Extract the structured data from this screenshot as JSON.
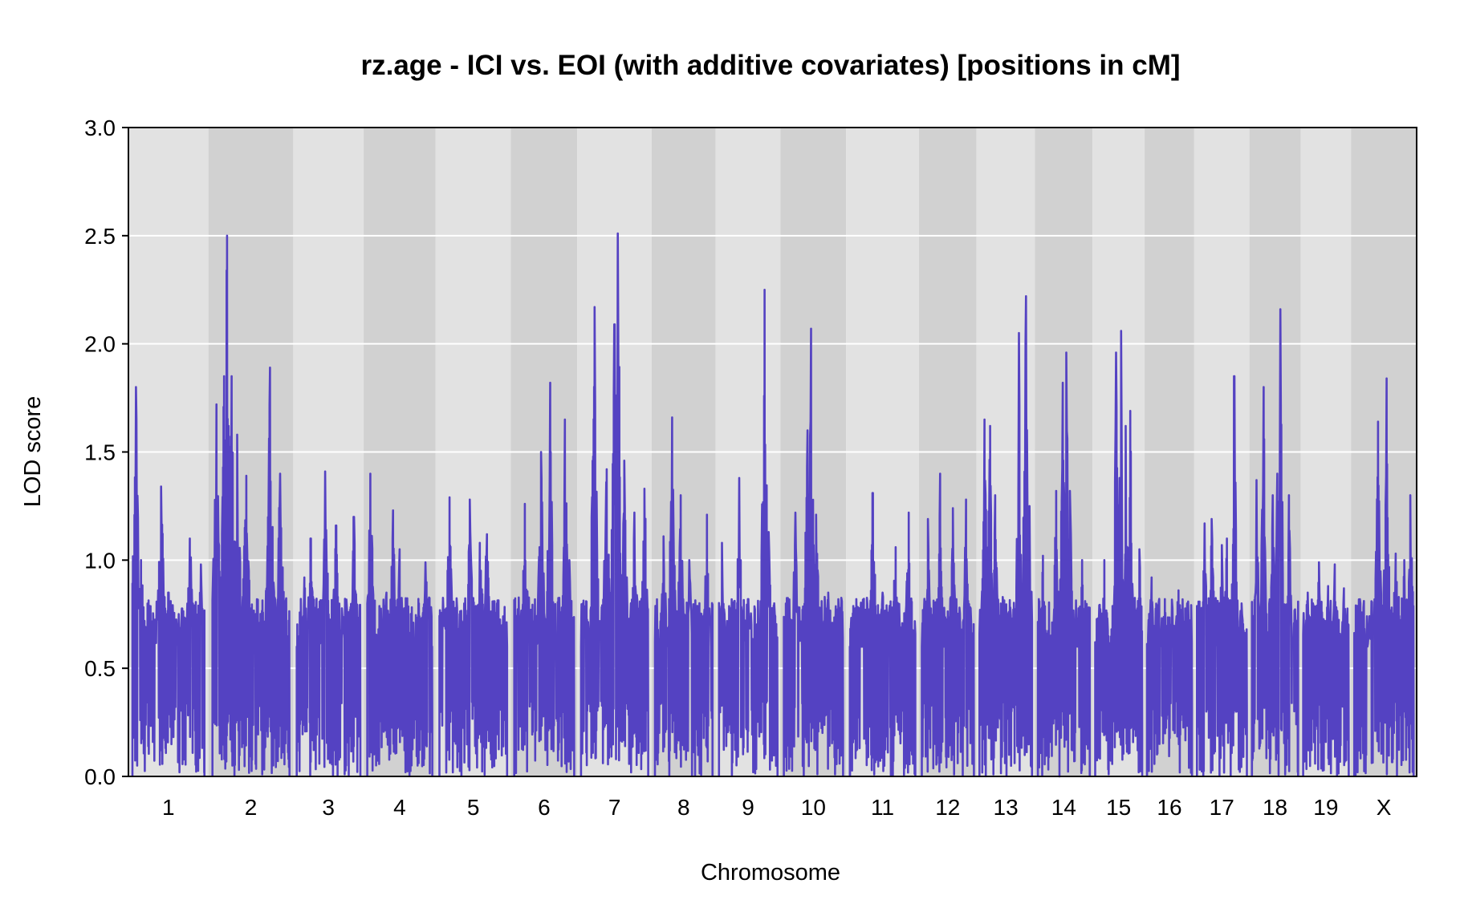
{
  "chart_data": {
    "type": "line",
    "title": "rz.age - ICI vs. EOI (with additive covariates) [positions in cM]",
    "xlabel": "Chromosome",
    "ylabel": "LOD score",
    "ylim": [
      0.0,
      3.0
    ],
    "yticks": [
      "0.0",
      "0.5",
      "1.0",
      "1.5",
      "2.0",
      "2.5",
      "3.0"
    ],
    "grid": true,
    "legend": "none",
    "colors": {
      "line": "#5442c2",
      "band_light": "#e2e2e2",
      "band_dark": "#d1d1d1",
      "grid": "#ffffff",
      "frame": "#000000"
    },
    "chromosomes": [
      {
        "name": "1",
        "peaks": [
          [
            0.05,
            1.8
          ],
          [
            0.12,
            1.0
          ],
          [
            0.4,
            1.34
          ],
          [
            0.5,
            0.85
          ],
          [
            0.8,
            1.1
          ],
          [
            0.95,
            0.98
          ]
        ]
      },
      {
        "name": "2",
        "peaks": [
          [
            0.05,
            1.72
          ],
          [
            0.15,
            1.85
          ],
          [
            0.19,
            2.5
          ],
          [
            0.25,
            1.85
          ],
          [
            0.32,
            1.58
          ],
          [
            0.44,
            1.39
          ],
          [
            0.75,
            1.89
          ],
          [
            0.88,
            1.4
          ]
        ]
      },
      {
        "name": "3",
        "peaks": [
          [
            0.12,
            0.92
          ],
          [
            0.22,
            1.1
          ],
          [
            0.45,
            1.41
          ],
          [
            0.62,
            1.16
          ],
          [
            0.9,
            1.2
          ]
        ]
      },
      {
        "name": "4",
        "peaks": [
          [
            0.05,
            1.4
          ],
          [
            0.3,
            0.85
          ],
          [
            0.4,
            1.23
          ],
          [
            0.5,
            1.05
          ],
          [
            0.8,
            0.8
          ],
          [
            0.9,
            0.99
          ]
        ]
      },
      {
        "name": "5",
        "peaks": [
          [
            0.15,
            1.29
          ],
          [
            0.45,
            1.28
          ],
          [
            0.6,
            1.08
          ],
          [
            0.7,
            1.12
          ],
          [
            0.85,
            0.8
          ]
        ]
      },
      {
        "name": "6",
        "peaks": [
          [
            0.18,
            1.26
          ],
          [
            0.45,
            1.5
          ],
          [
            0.6,
            1.82
          ],
          [
            0.85,
            1.65
          ],
          [
            0.92,
            1.0
          ]
        ]
      },
      {
        "name": "7",
        "peaks": [
          [
            0.2,
            2.17
          ],
          [
            0.38,
            1.42
          ],
          [
            0.5,
            2.09
          ],
          [
            0.55,
            2.51
          ],
          [
            0.65,
            1.46
          ],
          [
            0.8,
            1.22
          ],
          [
            0.95,
            1.33
          ]
        ]
      },
      {
        "name": "8",
        "peaks": [
          [
            0.15,
            1.11
          ],
          [
            0.3,
            1.66
          ],
          [
            0.45,
            1.3
          ],
          [
            0.6,
            1.0
          ],
          [
            0.9,
            1.21
          ]
        ]
      },
      {
        "name": "9",
        "peaks": [
          [
            0.05,
            1.08
          ],
          [
            0.35,
            1.38
          ],
          [
            0.5,
            0.82
          ],
          [
            0.78,
            2.25
          ],
          [
            0.85,
            1.13
          ]
        ]
      },
      {
        "name": "10",
        "peaks": [
          [
            0.2,
            1.22
          ],
          [
            0.4,
            1.6
          ],
          [
            0.46,
            2.07
          ],
          [
            0.55,
            1.21
          ],
          [
            0.75,
            0.85
          ]
        ]
      },
      {
        "name": "11",
        "peaks": [
          [
            0.1,
            0.82
          ],
          [
            0.35,
            1.31
          ],
          [
            0.5,
            0.85
          ],
          [
            0.7,
            1.06
          ],
          [
            0.9,
            1.22
          ]
        ]
      },
      {
        "name": "12",
        "peaks": [
          [
            0.12,
            1.19
          ],
          [
            0.35,
            1.4
          ],
          [
            0.6,
            1.24
          ],
          [
            0.85,
            1.28
          ]
        ]
      },
      {
        "name": "13",
        "peaks": [
          [
            0.1,
            1.65
          ],
          [
            0.2,
            1.62
          ],
          [
            0.3,
            1.3
          ],
          [
            0.75,
            2.05
          ],
          [
            0.88,
            2.22
          ],
          [
            0.95,
            1.25
          ]
        ]
      },
      {
        "name": "14",
        "peaks": [
          [
            0.1,
            1.02
          ],
          [
            0.35,
            1.32
          ],
          [
            0.48,
            1.82
          ],
          [
            0.55,
            1.96
          ],
          [
            0.62,
            1.32
          ],
          [
            0.85,
            1.0
          ]
        ]
      },
      {
        "name": "15",
        "peaks": [
          [
            0.2,
            1.0
          ],
          [
            0.45,
            1.96
          ],
          [
            0.55,
            2.06
          ],
          [
            0.65,
            1.62
          ],
          [
            0.75,
            1.69
          ],
          [
            0.95,
            1.05
          ]
        ]
      },
      {
        "name": "16",
        "peaks": [
          [
            0.1,
            0.92
          ],
          [
            0.4,
            0.82
          ],
          [
            0.7,
            0.86
          ],
          [
            0.9,
            0.8
          ]
        ]
      },
      {
        "name": "17",
        "peaks": [
          [
            0.15,
            1.17
          ],
          [
            0.3,
            1.19
          ],
          [
            0.5,
            1.07
          ],
          [
            0.6,
            1.1
          ],
          [
            0.75,
            1.85
          ],
          [
            0.9,
            0.8
          ]
        ]
      },
      {
        "name": "18",
        "peaks": [
          [
            0.1,
            1.37
          ],
          [
            0.25,
            1.8
          ],
          [
            0.45,
            1.3
          ],
          [
            0.55,
            1.4
          ],
          [
            0.62,
            2.16
          ],
          [
            0.8,
            1.3
          ]
        ]
      },
      {
        "name": "19",
        "peaks": [
          [
            0.1,
            0.85
          ],
          [
            0.35,
            0.99
          ],
          [
            0.55,
            0.88
          ],
          [
            0.7,
            0.98
          ],
          [
            0.9,
            0.87
          ]
        ]
      },
      {
        "name": "X",
        "peaks": [
          [
            0.1,
            0.8
          ],
          [
            0.4,
            1.64
          ],
          [
            0.55,
            1.84
          ],
          [
            0.7,
            1.03
          ],
          [
            0.85,
            1.0
          ],
          [
            0.95,
            1.3
          ]
        ]
      }
    ]
  }
}
